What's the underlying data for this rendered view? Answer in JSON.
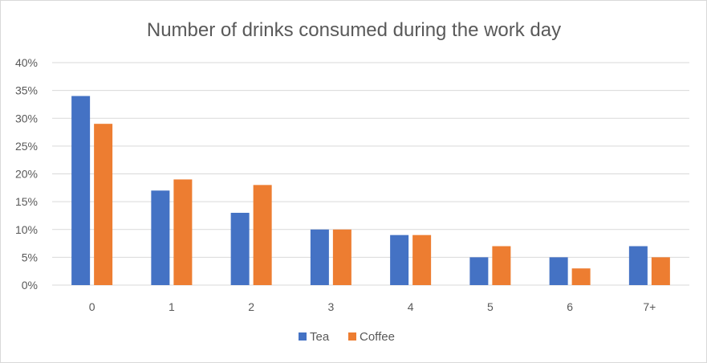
{
  "chart_data": {
    "type": "bar",
    "title": "Number of drinks consumed during the work day",
    "xlabel": "",
    "ylabel": "",
    "categories": [
      "0",
      "1",
      "2",
      "3",
      "4",
      "5",
      "6",
      "7+"
    ],
    "series": [
      {
        "name": "Tea",
        "color": "#4472c4",
        "values": [
          34,
          17,
          13,
          10,
          9,
          5,
          5,
          7
        ]
      },
      {
        "name": "Coffee",
        "color": "#ed7d31",
        "values": [
          29,
          19,
          18,
          10,
          9,
          7,
          3,
          5
        ]
      }
    ],
    "ylim": [
      0,
      40
    ],
    "yticks": [
      "0%",
      "5%",
      "10%",
      "15%",
      "20%",
      "25%",
      "30%",
      "35%",
      "40%"
    ],
    "grid": true,
    "legend_position": "bottom"
  }
}
